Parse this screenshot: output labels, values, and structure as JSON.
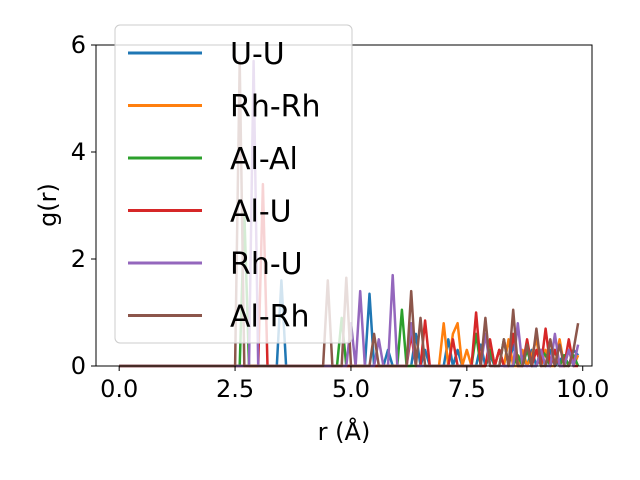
{
  "chart_data": {
    "type": "line",
    "xlabel": "r (Å)",
    "ylabel": "g(r)",
    "xlim": [
      -0.5,
      10.2
    ],
    "ylim": [
      0,
      6
    ],
    "x_ticks": [
      "0.0",
      "2.5",
      "5.0",
      "7.5",
      "10.0"
    ],
    "x_tick_values": [
      0,
      2.5,
      5,
      7.5,
      10
    ],
    "y_ticks": [
      "0",
      "2",
      "4",
      "6"
    ],
    "y_tick_values": [
      0,
      2,
      4,
      6
    ],
    "grid": false,
    "legend": "top-left",
    "x": [
      0.0,
      0.1,
      0.2,
      0.3,
      0.4,
      0.5,
      0.6,
      0.7,
      0.8,
      0.9,
      1.0,
      1.1,
      1.2,
      1.3,
      1.4,
      1.5,
      1.6,
      1.7,
      1.8,
      1.9,
      2.0,
      2.1,
      2.2,
      2.3,
      2.4,
      2.5,
      2.6,
      2.7,
      2.8,
      2.9,
      3.0,
      3.1,
      3.2,
      3.3,
      3.4,
      3.5,
      3.6,
      3.7,
      3.8,
      3.9,
      4.0,
      4.1,
      4.2,
      4.3,
      4.4,
      4.5,
      4.6,
      4.7,
      4.8,
      4.9,
      5.0,
      5.1,
      5.2,
      5.3,
      5.4,
      5.5,
      5.6,
      5.7,
      5.8,
      5.9,
      6.0,
      6.1,
      6.2,
      6.3,
      6.4,
      6.5,
      6.6,
      6.7,
      6.8,
      6.9,
      7.0,
      7.1,
      7.2,
      7.3,
      7.4,
      7.5,
      7.6,
      7.7,
      7.8,
      7.9,
      8.0,
      8.1,
      8.2,
      8.3,
      8.4,
      8.5,
      8.6,
      8.7,
      8.8,
      8.9,
      9.0,
      9.1,
      9.2,
      9.3,
      9.4,
      9.5,
      9.6,
      9.7,
      9.8,
      9.9
    ],
    "series": [
      {
        "name": "U-U",
        "color": "#1f77b4",
        "values": [
          0,
          0,
          0,
          0,
          0,
          0,
          0,
          0,
          0,
          0,
          0,
          0,
          0,
          0,
          0,
          0,
          0,
          0,
          0,
          0,
          0,
          0,
          0,
          0,
          0,
          0,
          0,
          0,
          0,
          0,
          0,
          0,
          0,
          0,
          0,
          1.6,
          0,
          0,
          0,
          0,
          0,
          0,
          0,
          0,
          0,
          0,
          0,
          0,
          0,
          0,
          0,
          0,
          0,
          0,
          1.35,
          0,
          0,
          0,
          0.3,
          0,
          0,
          0,
          0,
          0,
          0.6,
          0,
          0.3,
          0,
          0,
          0,
          0,
          0.5,
          0,
          0.3,
          0,
          0,
          0,
          0,
          0.4,
          0,
          0.2,
          0,
          0.3,
          0,
          0,
          0.4,
          0,
          0.2,
          0,
          0.3,
          0,
          0.2,
          0,
          0.3,
          0,
          0.1,
          0.2,
          0,
          0.3,
          0.2
        ]
      },
      {
        "name": "Rh-Rh",
        "color": "#ff7f0e",
        "values": [
          0,
          0,
          0,
          0,
          0,
          0,
          0,
          0,
          0,
          0,
          0,
          0,
          0,
          0,
          0,
          0,
          0,
          0,
          0,
          0,
          0,
          0,
          0,
          0,
          0,
          0,
          0,
          0,
          0,
          0,
          0,
          0,
          0,
          0,
          0,
          0,
          0,
          0,
          0,
          0,
          0,
          0,
          0,
          0,
          0,
          0,
          0,
          0,
          0,
          0,
          0,
          0,
          0,
          0,
          0,
          0,
          0,
          0,
          0,
          0,
          0,
          0,
          0,
          0,
          0,
          0,
          0,
          0,
          0,
          0,
          0.8,
          0,
          0.6,
          0.8,
          0,
          0.3,
          0,
          0,
          0,
          0,
          0.4,
          0,
          0.3,
          0,
          0.5,
          0,
          0,
          0.3,
          0,
          0.2,
          0.5,
          0,
          0.3,
          0,
          0,
          0.5,
          0,
          0.3,
          0,
          0.2
        ]
      },
      {
        "name": "Al-Al",
        "color": "#2ca02c",
        "values": [
          0,
          0,
          0,
          0,
          0,
          0,
          0,
          0,
          0,
          0,
          0,
          0,
          0,
          0,
          0,
          0,
          0,
          0,
          0,
          0,
          0,
          0,
          0,
          0,
          0,
          0,
          0,
          2.9,
          0,
          0,
          0,
          0,
          0,
          0,
          0,
          0,
          0,
          0,
          0,
          0,
          0,
          0,
          0,
          0,
          0,
          0,
          0,
          0,
          0.9,
          0,
          0,
          0,
          0,
          0,
          0,
          0,
          0,
          0,
          0,
          0,
          0,
          1.05,
          0,
          0,
          0,
          0,
          0,
          0,
          0,
          0,
          0,
          0,
          0,
          0,
          0,
          0,
          0,
          0.6,
          0,
          0,
          0.3,
          0,
          0,
          0.5,
          0,
          0,
          0.2,
          0,
          0.3,
          0,
          0,
          0.3,
          0.2,
          0,
          0.3,
          0,
          0.2,
          0,
          0.2,
          0
        ]
      },
      {
        "name": "Al-U",
        "color": "#d62728",
        "values": [
          0,
          0,
          0,
          0,
          0,
          0,
          0,
          0,
          0,
          0,
          0,
          0,
          0,
          0,
          0,
          0,
          0,
          0,
          0,
          0,
          0,
          0,
          0,
          0,
          0,
          0,
          0,
          0,
          0,
          0,
          0,
          3.4,
          0,
          0,
          0,
          0,
          0,
          0,
          0,
          0,
          0,
          0,
          0,
          0,
          0,
          0,
          0,
          0,
          0,
          0,
          0,
          0,
          0,
          0,
          0,
          0,
          0,
          0,
          0,
          0,
          0,
          0,
          0,
          0.6,
          0,
          0,
          0.85,
          0,
          0,
          0,
          0,
          0,
          0.5,
          0,
          0,
          0,
          0,
          1.0,
          0,
          0,
          0.5,
          0,
          0.3,
          0,
          0,
          0.6,
          0,
          0,
          0.5,
          0,
          0.3,
          0,
          0.7,
          0,
          0.3,
          0,
          0,
          0.5,
          0,
          0
        ]
      },
      {
        "name": "Rh-U",
        "color": "#9467bd",
        "values": [
          0,
          0,
          0,
          0,
          0,
          0,
          0,
          0,
          0,
          0,
          0,
          0,
          0,
          0,
          0,
          0,
          0,
          0,
          0,
          0,
          0,
          0,
          0,
          0,
          0,
          0,
          0,
          0,
          0,
          5.7,
          0,
          0,
          0,
          0,
          0,
          0,
          0,
          0,
          0,
          0,
          0,
          0,
          0,
          0,
          0,
          0,
          0,
          0,
          0,
          0,
          0.8,
          0,
          1.4,
          0,
          0,
          0,
          0.5,
          0,
          0,
          1.7,
          0,
          0,
          0,
          0.8,
          0,
          0,
          0,
          0,
          0,
          0,
          0,
          0,
          0,
          0,
          0,
          0,
          0,
          0,
          0,
          0.6,
          0,
          0,
          0,
          0,
          0,
          0,
          0.8,
          0,
          0,
          0,
          0,
          0.3,
          0,
          0,
          0.6,
          0,
          0,
          0.3,
          0,
          0.4
        ]
      },
      {
        "name": "Al-Rh",
        "color": "#8c564b",
        "values": [
          0,
          0,
          0,
          0,
          0,
          0,
          0,
          0,
          0,
          0,
          0,
          0,
          0,
          0,
          0,
          0,
          0,
          0,
          0,
          0,
          0,
          0,
          0,
          0,
          0,
          0,
          5.7,
          0,
          0,
          0,
          0,
          0,
          0,
          0,
          0,
          0,
          0,
          0,
          0,
          0,
          0,
          0,
          0,
          0,
          0,
          1.6,
          0,
          0,
          0,
          1.65,
          0,
          0,
          0,
          0,
          0,
          0.6,
          0,
          0,
          0,
          0,
          0,
          0,
          0,
          1.4,
          0,
          0.9,
          0,
          0,
          0,
          0,
          0,
          0,
          0,
          0,
          0,
          0,
          0,
          0,
          0,
          0.9,
          0,
          0,
          0,
          0.5,
          0,
          1.05,
          0,
          0,
          0.4,
          0,
          0.7,
          0,
          0,
          0.5,
          0,
          0.4,
          0,
          0,
          0.3,
          0.8
        ]
      }
    ]
  }
}
